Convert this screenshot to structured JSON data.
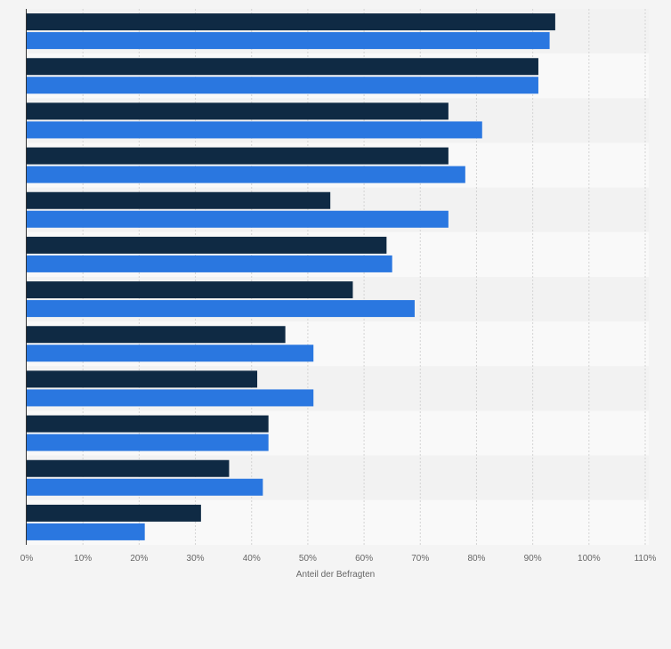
{
  "chart_data": {
    "type": "bar",
    "orientation": "horizontal",
    "categories": [
      "",
      "",
      "",
      "",
      "",
      "",
      "",
      "",
      "",
      "",
      "",
      ""
    ],
    "series": [
      {
        "color": "#0f2a44",
        "values": [
          94,
          91,
          75,
          75,
          54,
          64,
          58,
          46,
          41,
          43,
          36,
          31
        ]
      },
      {
        "color": "#2a77e0",
        "values": [
          93,
          91,
          81,
          78,
          75,
          65,
          69,
          51,
          51,
          43,
          42,
          21
        ]
      }
    ],
    "xlim": [
      0,
      110
    ],
    "xticks": [
      "0%",
      "10%",
      "20%",
      "30%",
      "40%",
      "50%",
      "60%",
      "70%",
      "80%",
      "90%",
      "100%",
      "110%"
    ],
    "xlabel": "Anteil der Befragten",
    "grid": true
  }
}
